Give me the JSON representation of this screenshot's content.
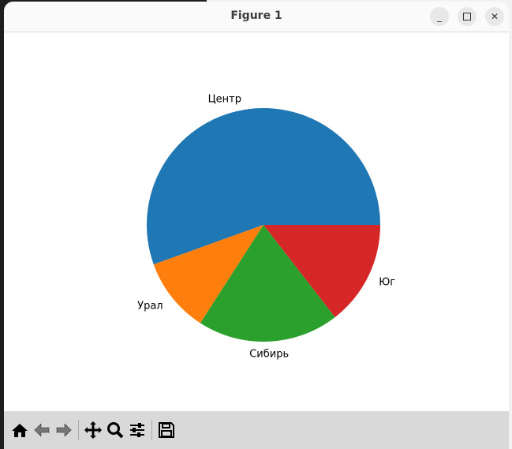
{
  "window": {
    "title": "Figure 1",
    "minimize_icon": "minimize-icon",
    "maximize_icon": "maximize-icon",
    "close_icon": "close-icon"
  },
  "toolbar": {
    "items": [
      "home-icon",
      "back-icon",
      "forward-icon",
      "pan-icon",
      "zoom-icon",
      "configure-subplots-icon",
      "save-icon"
    ]
  },
  "chart_data": {
    "type": "pie",
    "title": "",
    "start_angle_deg": 0,
    "direction": "counterclockwise",
    "categories": [
      "Центр",
      "Урал",
      "Сибирь",
      "Юг"
    ],
    "values": [
      55.5,
      10.4,
      19.6,
      14.5
    ],
    "colors": [
      "#1f77b4",
      "#ff7f0e",
      "#2ca02c",
      "#d62728"
    ]
  }
}
